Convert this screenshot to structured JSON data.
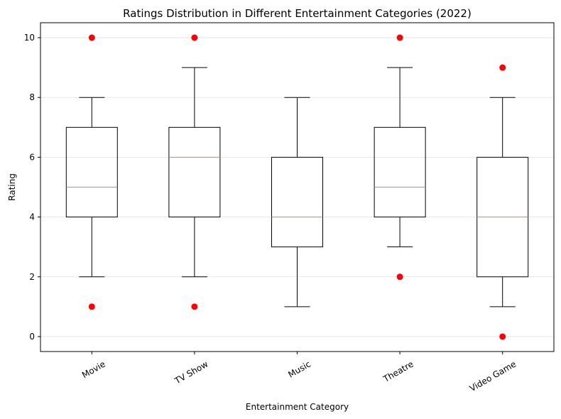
{
  "chart_data": {
    "type": "box",
    "title": "Ratings Distribution in Different Entertainment Categories (2022)",
    "xlabel": "Entertainment Category",
    "ylabel": "Rating",
    "ylim": [
      -0.5,
      10.5
    ],
    "yticks": [
      0,
      2,
      4,
      6,
      8,
      10
    ],
    "grid": "y",
    "categories": [
      "Movie",
      "TV Show",
      "Music",
      "Theatre",
      "Video Game"
    ],
    "boxes": [
      {
        "category": "Movie",
        "whisker_low": 2,
        "q1": 4,
        "median": 5,
        "q3": 7,
        "whisker_high": 8,
        "outliers": [
          1,
          10
        ]
      },
      {
        "category": "TV Show",
        "whisker_low": 2,
        "q1": 4,
        "median": 6,
        "q3": 7,
        "whisker_high": 9,
        "outliers": [
          1,
          10
        ]
      },
      {
        "category": "Music",
        "whisker_low": 1,
        "q1": 3,
        "median": 4,
        "q3": 6,
        "whisker_high": 8,
        "outliers": []
      },
      {
        "category": "Theatre",
        "whisker_low": 3,
        "q1": 4,
        "median": 5,
        "q3": 7,
        "whisker_high": 9,
        "outliers": [
          2,
          10
        ]
      },
      {
        "category": "Video Game",
        "whisker_low": 1,
        "q1": 2,
        "median": 4,
        "q3": 6,
        "whisker_high": 8,
        "outliers": [
          0,
          9
        ]
      }
    ],
    "colors": {
      "box": "#000000",
      "median": "#ff7f0e",
      "outlier": "#ff0000",
      "grid": "#e0e0e0"
    }
  }
}
